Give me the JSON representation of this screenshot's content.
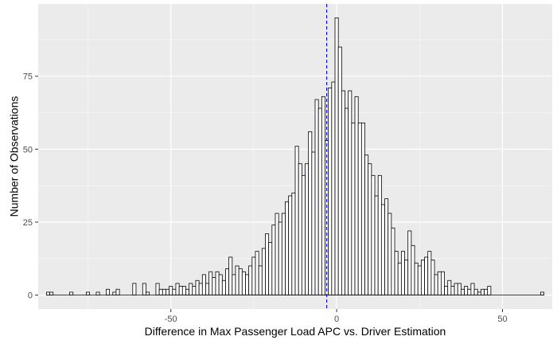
{
  "colors": {
    "panel": "#ebebeb",
    "grid_major": "#ffffff",
    "bar_fill": "#ffffff",
    "bar_stroke": "#000000",
    "mean_line": "#0000cc"
  },
  "chart_data": {
    "type": "bar",
    "subtype": "histogram",
    "title": "",
    "xlabel": "Difference in Max Passenger Load APC vs. Driver Estimation",
    "ylabel": "Number of Observations",
    "xlim": [
      -90,
      65
    ],
    "ylim": [
      -4.75,
      99.75
    ],
    "x_ticks": [
      -50,
      0,
      50
    ],
    "y_ticks": [
      0,
      25,
      50,
      75
    ],
    "bin_width": 1,
    "grid": true,
    "legend": "none",
    "reference_line": {
      "x": -3,
      "style": "dashed"
    },
    "bars": [
      {
        "x": -87,
        "y": 1
      },
      {
        "x": -86,
        "y": 1
      },
      {
        "x": -84,
        "y": 0
      },
      {
        "x": -83,
        "y": 0
      },
      {
        "x": -80,
        "y": 1
      },
      {
        "x": -75,
        "y": 1
      },
      {
        "x": -72,
        "y": 1
      },
      {
        "x": -69,
        "y": 2
      },
      {
        "x": -67,
        "y": 1
      },
      {
        "x": -66,
        "y": 2
      },
      {
        "x": -62,
        "y": 0
      },
      {
        "x": -61,
        "y": 4
      },
      {
        "x": -59,
        "y": 0
      },
      {
        "x": -58,
        "y": 4
      },
      {
        "x": -57,
        "y": 1
      },
      {
        "x": -54,
        "y": 4
      },
      {
        "x": -53,
        "y": 2
      },
      {
        "x": -52,
        "y": 2
      },
      {
        "x": -51,
        "y": 2
      },
      {
        "x": -50,
        "y": 3
      },
      {
        "x": -49,
        "y": 2
      },
      {
        "x": -48,
        "y": 4
      },
      {
        "x": -47,
        "y": 3
      },
      {
        "x": -46,
        "y": 3
      },
      {
        "x": -45,
        "y": 2
      },
      {
        "x": -44,
        "y": 4
      },
      {
        "x": -43,
        "y": 3
      },
      {
        "x": -42,
        "y": 5
      },
      {
        "x": -41,
        "y": 4
      },
      {
        "x": -40,
        "y": 7
      },
      {
        "x": -39,
        "y": 4
      },
      {
        "x": -38,
        "y": 8
      },
      {
        "x": -37,
        "y": 6
      },
      {
        "x": -36,
        "y": 8
      },
      {
        "x": -35,
        "y": 7
      },
      {
        "x": -34,
        "y": 5
      },
      {
        "x": -33,
        "y": 9
      },
      {
        "x": -32,
        "y": 13
      },
      {
        "x": -31,
        "y": 7
      },
      {
        "x": -30,
        "y": 10
      },
      {
        "x": -29,
        "y": 9
      },
      {
        "x": -28,
        "y": 8
      },
      {
        "x": -27,
        "y": 7
      },
      {
        "x": -26,
        "y": 10
      },
      {
        "x": -25,
        "y": 13
      },
      {
        "x": -24,
        "y": 15
      },
      {
        "x": -23,
        "y": 10
      },
      {
        "x": -22,
        "y": 16
      },
      {
        "x": -21,
        "y": 21
      },
      {
        "x": -20,
        "y": 18
      },
      {
        "x": -19,
        "y": 24
      },
      {
        "x": -18,
        "y": 28
      },
      {
        "x": -17,
        "y": 25
      },
      {
        "x": -16,
        "y": 28
      },
      {
        "x": -15,
        "y": 32
      },
      {
        "x": -14,
        "y": 34
      },
      {
        "x": -13,
        "y": 35
      },
      {
        "x": -12,
        "y": 51
      },
      {
        "x": -11,
        "y": 45
      },
      {
        "x": -10,
        "y": 41
      },
      {
        "x": -9,
        "y": 45
      },
      {
        "x": -8,
        "y": 56
      },
      {
        "x": -7,
        "y": 49
      },
      {
        "x": -6,
        "y": 67
      },
      {
        "x": -5,
        "y": 64
      },
      {
        "x": -4,
        "y": 68
      },
      {
        "x": -3,
        "y": 53
      },
      {
        "x": -2,
        "y": 71
      },
      {
        "x": -1,
        "y": 73
      },
      {
        "x": 0,
        "y": 95
      },
      {
        "x": 1,
        "y": 85
      },
      {
        "x": 2,
        "y": 70
      },
      {
        "x": 3,
        "y": 64
      },
      {
        "x": 4,
        "y": 70
      },
      {
        "x": 5,
        "y": 59
      },
      {
        "x": 6,
        "y": 68
      },
      {
        "x": 7,
        "y": 59
      },
      {
        "x": 8,
        "y": 59
      },
      {
        "x": 9,
        "y": 48
      },
      {
        "x": 10,
        "y": 45
      },
      {
        "x": 11,
        "y": 41
      },
      {
        "x": 12,
        "y": 34
      },
      {
        "x": 13,
        "y": 41
      },
      {
        "x": 14,
        "y": 31
      },
      {
        "x": 15,
        "y": 33
      },
      {
        "x": 16,
        "y": 28
      },
      {
        "x": 17,
        "y": 23
      },
      {
        "x": 18,
        "y": 15
      },
      {
        "x": 19,
        "y": 11
      },
      {
        "x": 20,
        "y": 15
      },
      {
        "x": 21,
        "y": 12
      },
      {
        "x": 22,
        "y": 22
      },
      {
        "x": 23,
        "y": 17
      },
      {
        "x": 24,
        "y": 11
      },
      {
        "x": 25,
        "y": 10
      },
      {
        "x": 26,
        "y": 12
      },
      {
        "x": 27,
        "y": 13
      },
      {
        "x": 28,
        "y": 15
      },
      {
        "x": 29,
        "y": 12
      },
      {
        "x": 30,
        "y": 7
      },
      {
        "x": 31,
        "y": 8
      },
      {
        "x": 32,
        "y": 8
      },
      {
        "x": 33,
        "y": 3
      },
      {
        "x": 34,
        "y": 5
      },
      {
        "x": 35,
        "y": 3
      },
      {
        "x": 36,
        "y": 4
      },
      {
        "x": 37,
        "y": 4
      },
      {
        "x": 38,
        "y": 2
      },
      {
        "x": 39,
        "y": 3
      },
      {
        "x": 40,
        "y": 2
      },
      {
        "x": 41,
        "y": 4
      },
      {
        "x": 42,
        "y": 2
      },
      {
        "x": 43,
        "y": 1
      },
      {
        "x": 44,
        "y": 2
      },
      {
        "x": 45,
        "y": 2
      },
      {
        "x": 46,
        "y": 3
      },
      {
        "x": 62,
        "y": 1
      }
    ]
  }
}
